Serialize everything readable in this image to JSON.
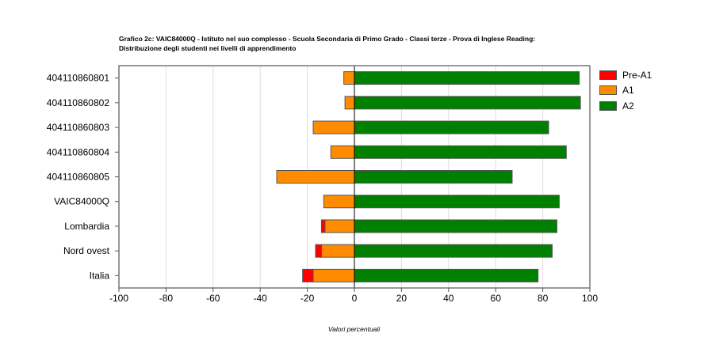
{
  "title_line1": "Grafico 2c: VAIC84000Q - Istituto nel suo complesso - Scuola Secondaria di Primo Grado - Classi terze - Prova di Inglese Reading:",
  "title_line2": "Distribuzione degli studenti nei livelli di apprendimento",
  "xlabel": "Valori percentuali",
  "colors": {
    "pre_a1": "#ff0000",
    "a1": "#ff8c00",
    "a2": "#008000"
  },
  "legend": [
    {
      "label": "Pre-A1",
      "color": "#ff0000"
    },
    {
      "label": "A1",
      "color": "#ff8c00"
    },
    {
      "label": "A2",
      "color": "#008000"
    }
  ],
  "chart_data": {
    "type": "bar",
    "orientation": "horizontal",
    "stacked": "diverging",
    "categories": [
      "404110860801",
      "404110860802",
      "404110860803",
      "404110860804",
      "404110860805",
      "VAIC84000Q",
      "Lombardia",
      "Nord ovest",
      "Italia"
    ],
    "series": [
      {
        "name": "Pre-A1",
        "values": [
          0,
          0,
          0,
          0,
          0,
          0,
          1.5,
          2.5,
          4.5
        ]
      },
      {
        "name": "A1",
        "values": [
          4.5,
          4,
          17.5,
          10,
          33,
          13,
          12.5,
          14,
          17.5
        ]
      },
      {
        "name": "A2",
        "values": [
          95.5,
          96,
          82.5,
          90,
          67,
          87,
          86,
          84,
          78
        ]
      }
    ],
    "xlim": [
      -100,
      100
    ],
    "xticks": [
      -100,
      -80,
      -60,
      -40,
      -20,
      0,
      20,
      40,
      60,
      80,
      100
    ],
    "xlabel": "Valori percentuali",
    "grid": "vertical",
    "legend_position": "right"
  }
}
